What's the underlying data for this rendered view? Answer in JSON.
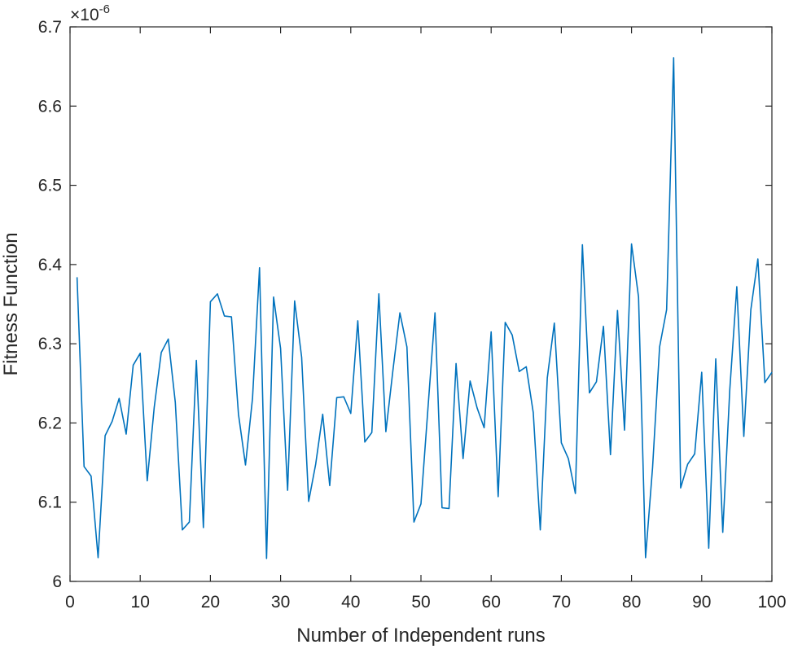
{
  "chart_data": {
    "type": "line",
    "title": "",
    "xlabel": "Number of Independent runs",
    "ylabel": "Fitness Function",
    "y_exponent_label": "×10",
    "y_exponent_power": "-6",
    "xlim": [
      0,
      100
    ],
    "ylim": [
      6.0,
      6.7
    ],
    "grid": false,
    "legend": "none",
    "x_ticks": [
      0,
      10,
      20,
      30,
      40,
      50,
      60,
      70,
      80,
      90,
      100
    ],
    "x_tick_labels": [
      "0",
      "10",
      "20",
      "30",
      "40",
      "50",
      "60",
      "70",
      "80",
      "90",
      "100"
    ],
    "y_ticks": [
      6.0,
      6.1,
      6.2,
      6.3,
      6.4,
      6.5,
      6.6,
      6.7
    ],
    "y_tick_labels": [
      "6",
      "6.1",
      "6.2",
      "6.3",
      "6.4",
      "6.5",
      "6.6",
      "6.7"
    ],
    "series": [
      {
        "color": "#0072BD",
        "x": [
          1,
          2,
          3,
          4,
          5,
          6,
          7,
          8,
          9,
          10,
          11,
          12,
          13,
          14,
          15,
          16,
          17,
          18,
          19,
          20,
          21,
          22,
          23,
          24,
          25,
          26,
          27,
          28,
          29,
          30,
          31,
          32,
          33,
          34,
          35,
          36,
          37,
          38,
          39,
          40,
          41,
          42,
          43,
          44,
          45,
          46,
          47,
          48,
          49,
          50,
          51,
          52,
          53,
          54,
          55,
          56,
          57,
          58,
          59,
          60,
          61,
          62,
          63,
          64,
          65,
          66,
          67,
          68,
          69,
          70,
          71,
          72,
          73,
          74,
          75,
          76,
          77,
          78,
          79,
          80,
          81,
          82,
          83,
          84,
          85,
          86,
          87,
          88,
          89,
          90,
          91,
          92,
          93,
          94,
          95,
          96,
          97,
          98,
          99,
          100
        ],
        "y": [
          6.384,
          6.145,
          6.133,
          6.03,
          6.184,
          6.202,
          6.231,
          6.186,
          6.273,
          6.288,
          6.127,
          6.22,
          6.289,
          6.306,
          6.226,
          6.065,
          6.075,
          6.279,
          6.068,
          6.353,
          6.363,
          6.335,
          6.334,
          6.211,
          6.147,
          6.231,
          6.396,
          6.029,
          6.359,
          6.294,
          6.115,
          6.354,
          6.283,
          6.101,
          6.148,
          6.211,
          6.121,
          6.232,
          6.233,
          6.212,
          6.329,
          6.176,
          6.188,
          6.363,
          6.189,
          6.266,
          6.339,
          6.296,
          6.075,
          6.098,
          6.219,
          6.339,
          6.093,
          6.092,
          6.275,
          6.155,
          6.253,
          6.219,
          6.194,
          6.315,
          6.107,
          6.327,
          6.311,
          6.265,
          6.271,
          6.213,
          6.065,
          6.257,
          6.326,
          6.175,
          6.155,
          6.111,
          6.425,
          6.238,
          6.252,
          6.322,
          6.16,
          6.342,
          6.191,
          6.426,
          6.359,
          6.03,
          6.144,
          6.296,
          6.343,
          6.661,
          6.118,
          6.148,
          6.161,
          6.264,
          6.042,
          6.281,
          6.062,
          6.242,
          6.372,
          6.183,
          6.343,
          6.407,
          6.251,
          6.264
        ]
      }
    ]
  }
}
